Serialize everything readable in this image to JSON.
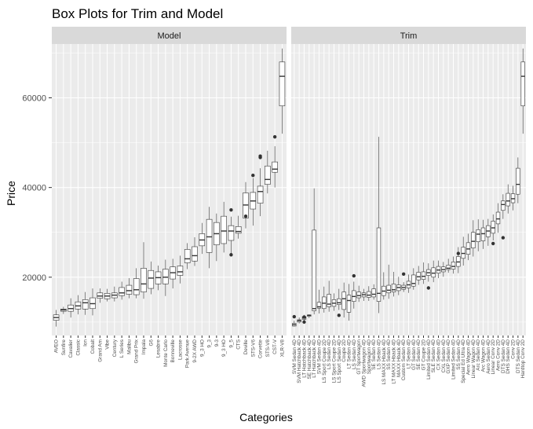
{
  "chart_data": {
    "type": "box",
    "title": "Box Plots for Trim and Model",
    "xlabel": "Categories",
    "ylabel": "Price",
    "ylim": [
      7000,
      72000
    ],
    "yticks": [
      20000,
      40000,
      60000
    ],
    "ytick_labels": [
      "20000",
      "40000",
      "60000"
    ],
    "grid": true,
    "legend": "none",
    "panels": [
      {
        "strip": "Model",
        "categories": [
          "AVEO",
          "Sunfire",
          "Cavalier",
          "Classic",
          "Ion",
          "Cobalt",
          "Grand Am",
          "Vibe",
          "Century",
          "L Series",
          "Malibu",
          "Grand Prix",
          "Impala",
          "G6",
          "Lesabre",
          "Monte Carlo",
          "Bonneville",
          "Lacrosse",
          "Park Avenue",
          "9-2X AWD",
          "9_3 HO",
          "9_3",
          "9-3",
          "9_3 HO",
          "9_5",
          "CTS",
          "Deville",
          "STS-V6",
          "Corvette",
          "STS-V8",
          "CST-V",
          "XLR-V8"
        ],
        "boxes": [
          {
            "min": 9000,
            "q1": 10400,
            "median": 11000,
            "q3": 11600,
            "max": 12700,
            "outliers": []
          },
          {
            "min": 11800,
            "q1": 12400,
            "median": 12700,
            "q3": 12900,
            "max": 13400,
            "outliers": []
          },
          {
            "min": 11000,
            "q1": 12400,
            "median": 13000,
            "q3": 13800,
            "max": 15300,
            "outliers": []
          },
          {
            "min": 11700,
            "q1": 12900,
            "median": 13600,
            "q3": 14500,
            "max": 16000,
            "outliers": []
          },
          {
            "min": 11600,
            "q1": 12900,
            "median": 14300,
            "q3": 15000,
            "max": 16700,
            "outliers": []
          },
          {
            "min": 11500,
            "q1": 13000,
            "median": 14100,
            "q3": 15400,
            "max": 17500,
            "outliers": []
          },
          {
            "min": 14300,
            "q1": 15300,
            "median": 15800,
            "q3": 16500,
            "max": 17500,
            "outliers": []
          },
          {
            "min": 14600,
            "q1": 15200,
            "median": 15800,
            "q3": 16400,
            "max": 17400,
            "outliers": []
          },
          {
            "min": 14600,
            "q1": 15400,
            "median": 16000,
            "q3": 16500,
            "max": 17900,
            "outliers": []
          },
          {
            "min": 15000,
            "q1": 15900,
            "median": 16500,
            "q3": 17700,
            "max": 19000,
            "outliers": []
          },
          {
            "min": 15300,
            "q1": 16200,
            "median": 17000,
            "q3": 18200,
            "max": 19800,
            "outliers": []
          },
          {
            "min": 15300,
            "q1": 16100,
            "median": 17200,
            "q3": 19700,
            "max": 22000,
            "outliers": []
          },
          {
            "min": 15200,
            "q1": 16700,
            "median": 18500,
            "q3": 22000,
            "max": 27800,
            "outliers": []
          },
          {
            "min": 16200,
            "q1": 17500,
            "median": 19800,
            "q3": 21500,
            "max": 23500,
            "outliers": []
          },
          {
            "min": 17100,
            "q1": 18500,
            "median": 19900,
            "q3": 21200,
            "max": 22600,
            "outliers": []
          },
          {
            "min": 15800,
            "q1": 18500,
            "median": 20000,
            "q3": 21800,
            "max": 23900,
            "outliers": []
          },
          {
            "min": 17500,
            "q1": 19600,
            "median": 21000,
            "q3": 22300,
            "max": 24100,
            "outliers": []
          },
          {
            "min": 18600,
            "q1": 20400,
            "median": 21200,
            "q3": 22500,
            "max": 24800,
            "outliers": []
          },
          {
            "min": 21800,
            "q1": 23200,
            "median": 24100,
            "q3": 26200,
            "max": 27600,
            "outliers": []
          },
          {
            "min": 22500,
            "q1": 23600,
            "median": 24800,
            "q3": 26800,
            "max": 28900,
            "outliers": []
          },
          {
            "min": 25200,
            "q1": 27000,
            "median": 28300,
            "q3": 29700,
            "max": 32100,
            "outliers": []
          },
          {
            "min": 22000,
            "q1": 25500,
            "median": 29000,
            "q3": 32900,
            "max": 35700,
            "outliers": []
          },
          {
            "min": 23600,
            "q1": 27200,
            "median": 29700,
            "q3": 32200,
            "max": 34200,
            "outliers": []
          },
          {
            "min": 25500,
            "q1": 27500,
            "median": 30300,
            "q3": 33600,
            "max": 36800,
            "outliers": []
          },
          {
            "min": 24900,
            "q1": 28200,
            "median": 30300,
            "q3": 31500,
            "max": 33500,
            "outliers": [
              25000,
              35000
            ]
          },
          {
            "min": 28600,
            "q1": 29800,
            "median": 30200,
            "q3": 31300,
            "max": 33700,
            "outliers": []
          },
          {
            "min": 30900,
            "q1": 33200,
            "median": 36100,
            "q3": 38800,
            "max": 41200,
            "outliers": [
              33600
            ]
          },
          {
            "min": 31500,
            "q1": 35200,
            "median": 37000,
            "q3": 38900,
            "max": 42100,
            "outliers": [
              42700
            ]
          },
          {
            "min": 33600,
            "q1": 36500,
            "median": 39100,
            "q3": 40300,
            "max": 44300,
            "outliers": [
              46700,
              47000
            ]
          },
          {
            "min": 38700,
            "q1": 40700,
            "median": 41800,
            "q3": 44800,
            "max": 48200,
            "outliers": []
          },
          {
            "min": 40000,
            "q1": 43400,
            "median": 44100,
            "q3": 45700,
            "max": 49200,
            "outliers": [
              51300
            ]
          },
          {
            "min": 52000,
            "q1": 58200,
            "median": 64800,
            "q3": 68000,
            "max": 71000,
            "outliers": []
          }
        ]
      },
      {
        "strip": "Trim",
        "categories": [
          "SVM Sedan 4D",
          "SVM Hatchback 4D",
          "LT Hatchback 4D",
          "SE Hatchback 4D",
          "LT Hatchback 4D",
          "SVM Sedan 4D",
          "LS Sport Coupe 2D",
          "LS Sedan 4D",
          "LS Sport Coupe 2D",
          "LS Sport Sedan 4D",
          "Coupe 2D",
          "LT Sedan 4D",
          "LS Sedan 4D",
          "GT Sportwagon",
          "AWD Sportwagon 4D",
          "Sportwagon 4D",
          "SE Sedan 4D",
          "LS Sedan 4D",
          "LS MAXX Hback 4D",
          "SS Sedan 4D",
          "LT MAXX Hback 4D",
          "MAXX Hback 4D",
          "Custom Sedan 4D",
          "LT Sedan 4D",
          "GT Sedan 4D",
          "SE Sedan 4D",
          "GT Coupe 2D",
          "Limited Sedan 4D",
          "SLE Sedan 4D",
          "CX Sedan 4D",
          "CXL Sedan 4D",
          "GXP Sedan 4D",
          "Limited Sedan 4D",
          "SS Sedan 4D",
          "Special Ed Ultra 4D",
          "Aero Wagon 4D",
          "Linear Wagon 4D",
          "Arc Sedan 4D",
          "Arc Wagon 4D",
          "Aero Sedan 4D",
          "Linear Conv 2D",
          "Aero Conv 2D",
          "DTS Sedan 4D",
          "DHS Sedan 4D",
          "Conv 2D",
          "DTS Sedan 4D",
          "Hardtop Conv 2D"
        ],
        "boxes": [
          {
            "min": 9000,
            "q1": 9100,
            "median": 9400,
            "q3": 9700,
            "max": 10300,
            "outliers": [
              11200
            ]
          },
          {
            "min": 9700,
            "q1": 10000,
            "median": 10300,
            "q3": 10500,
            "max": 11000,
            "outliers": []
          },
          {
            "min": 10200,
            "q1": 10600,
            "median": 10900,
            "q3": 11200,
            "max": 11600,
            "outliers": [
              10000,
              11100
            ]
          },
          {
            "min": 10900,
            "q1": 11300,
            "median": 11500,
            "q3": 11600,
            "max": 11700,
            "outliers": []
          },
          {
            "min": 11700,
            "q1": 12500,
            "median": 13000,
            "q3": 30500,
            "max": 39800,
            "outliers": []
          },
          {
            "min": 11900,
            "q1": 13100,
            "median": 13400,
            "q3": 14400,
            "max": 17200,
            "outliers": []
          },
          {
            "min": 12100,
            "q1": 13000,
            "median": 14200,
            "q3": 15600,
            "max": 17900,
            "outliers": []
          },
          {
            "min": 12300,
            "q1": 13400,
            "median": 14000,
            "q3": 16200,
            "max": 19200,
            "outliers": []
          },
          {
            "min": 12500,
            "q1": 13500,
            "median": 14200,
            "q3": 15000,
            "max": 16400,
            "outliers": []
          },
          {
            "min": 12700,
            "q1": 13900,
            "median": 14300,
            "q3": 15200,
            "max": 17400,
            "outliers": [
              11500
            ]
          },
          {
            "min": 11000,
            "q1": 12800,
            "median": 15200,
            "q3": 16700,
            "max": 18800,
            "outliers": []
          },
          {
            "min": 10300,
            "q1": 12200,
            "median": 14800,
            "q3": 16000,
            "max": 18500,
            "outliers": []
          },
          {
            "min": 13000,
            "q1": 14600,
            "median": 15700,
            "q3": 17000,
            "max": 19000,
            "outliers": [
              20300
            ]
          },
          {
            "min": 14500,
            "q1": 15400,
            "median": 15900,
            "q3": 16700,
            "max": 18100,
            "outliers": []
          },
          {
            "min": 14700,
            "q1": 15600,
            "median": 16100,
            "q3": 16500,
            "max": 17400,
            "outliers": []
          },
          {
            "min": 14700,
            "q1": 15500,
            "median": 16000,
            "q3": 16800,
            "max": 18000,
            "outliers": []
          },
          {
            "min": 15000,
            "q1": 15600,
            "median": 16200,
            "q3": 17400,
            "max": 18400,
            "outliers": []
          },
          {
            "min": 12000,
            "q1": 14600,
            "median": 16400,
            "q3": 31000,
            "max": 51300,
            "outliers": []
          },
          {
            "min": 15000,
            "q1": 15900,
            "median": 16900,
            "q3": 18000,
            "max": 21100,
            "outliers": []
          },
          {
            "min": 15200,
            "q1": 16500,
            "median": 17100,
            "q3": 18200,
            "max": 22800,
            "outliers": []
          },
          {
            "min": 15700,
            "q1": 16700,
            "median": 17200,
            "q3": 18500,
            "max": 21200,
            "outliers": []
          },
          {
            "min": 16000,
            "q1": 17000,
            "median": 17700,
            "q3": 18300,
            "max": 20100,
            "outliers": []
          },
          {
            "min": 16700,
            "q1": 17300,
            "median": 17700,
            "q3": 18200,
            "max": 18900,
            "outliers": [
              20700
            ]
          },
          {
            "min": 16500,
            "q1": 17600,
            "median": 18300,
            "q3": 19100,
            "max": 20600,
            "outliers": []
          },
          {
            "min": 17200,
            "q1": 18000,
            "median": 18600,
            "q3": 20500,
            "max": 22000,
            "outliers": []
          },
          {
            "min": 18300,
            "q1": 19400,
            "median": 20100,
            "q3": 21100,
            "max": 22500,
            "outliers": []
          },
          {
            "min": 18500,
            "q1": 19500,
            "median": 20200,
            "q3": 21200,
            "max": 23300,
            "outliers": []
          },
          {
            "min": 19000,
            "q1": 20400,
            "median": 21000,
            "q3": 21700,
            "max": 23100,
            "outliers": [
              17600
            ]
          },
          {
            "min": 18900,
            "q1": 20000,
            "median": 20900,
            "q3": 22100,
            "max": 23700,
            "outliers": []
          },
          {
            "min": 19800,
            "q1": 20900,
            "median": 21600,
            "q3": 22400,
            "max": 23700,
            "outliers": []
          },
          {
            "min": 20100,
            "q1": 21200,
            "median": 21700,
            "q3": 22300,
            "max": 23400,
            "outliers": []
          },
          {
            "min": 21000,
            "q1": 21700,
            "median": 22000,
            "q3": 22700,
            "max": 24100,
            "outliers": []
          },
          {
            "min": 20800,
            "q1": 21800,
            "median": 22400,
            "q3": 23400,
            "max": 24600,
            "outliers": []
          },
          {
            "min": 20900,
            "q1": 22400,
            "median": 23400,
            "q3": 24600,
            "max": 26700,
            "outliers": [
              25300
            ]
          },
          {
            "min": 22600,
            "q1": 24200,
            "median": 25300,
            "q3": 26700,
            "max": 29000,
            "outliers": []
          },
          {
            "min": 23800,
            "q1": 25100,
            "median": 26300,
            "q3": 27700,
            "max": 29700,
            "outliers": []
          },
          {
            "min": 24600,
            "q1": 26500,
            "median": 28000,
            "q3": 30000,
            "max": 32700,
            "outliers": []
          },
          {
            "min": 25800,
            "q1": 27900,
            "median": 29600,
            "q3": 30600,
            "max": 32900,
            "outliers": []
          },
          {
            "min": 26300,
            "q1": 28100,
            "median": 29700,
            "q3": 31000,
            "max": 32800,
            "outliers": []
          },
          {
            "min": 27000,
            "q1": 29000,
            "median": 30300,
            "q3": 31500,
            "max": 33000,
            "outliers": []
          },
          {
            "min": 28200,
            "q1": 29800,
            "median": 31000,
            "q3": 32500,
            "max": 34000,
            "outliers": [
              27500
            ]
          },
          {
            "min": 29900,
            "q1": 31900,
            "median": 33000,
            "q3": 34500,
            "max": 36500,
            "outliers": []
          },
          {
            "min": 33000,
            "q1": 34900,
            "median": 36200,
            "q3": 37000,
            "max": 38500,
            "outliers": [
              28800
            ]
          },
          {
            "min": 34200,
            "q1": 35900,
            "median": 37000,
            "q3": 38700,
            "max": 40700,
            "outliers": []
          },
          {
            "min": 34900,
            "q1": 36600,
            "median": 37500,
            "q3": 38600,
            "max": 40400,
            "outliers": []
          },
          {
            "min": 36500,
            "q1": 38500,
            "median": 40700,
            "q3": 44300,
            "max": 46700,
            "outliers": []
          },
          {
            "min": 52000,
            "q1": 58200,
            "median": 64800,
            "q3": 68000,
            "max": 71000,
            "outliers": []
          }
        ]
      }
    ]
  }
}
